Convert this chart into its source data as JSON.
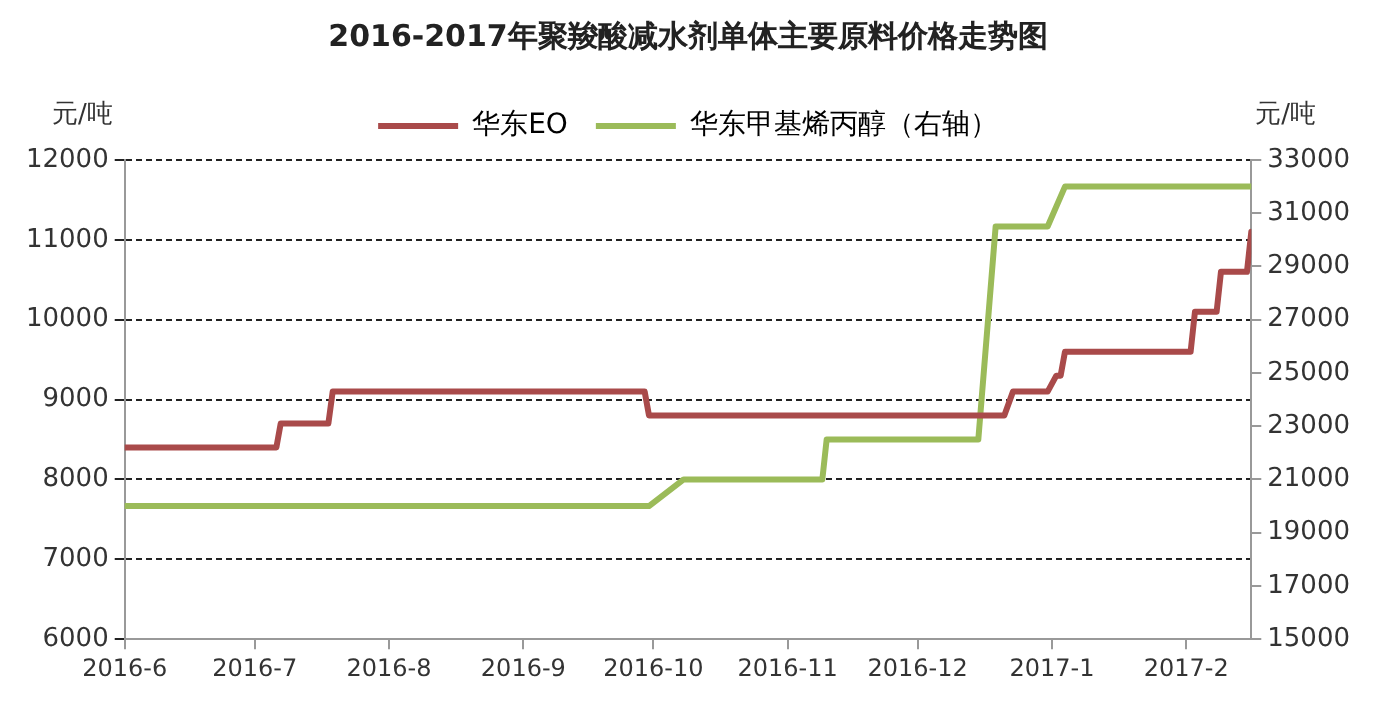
{
  "chart_data": {
    "type": "line",
    "title": "2016-2017年聚羧酸减水剂单体主要原料价格走势图",
    "ylabel": "元/吨",
    "y2label": "元/吨",
    "xlim": [
      "2016-06-01",
      "2017-02-16"
    ],
    "xticks": [
      {
        "value": "2016-06-01",
        "label": "2016-6"
      },
      {
        "value": "2016-07-01",
        "label": "2016-7"
      },
      {
        "value": "2016-08-01",
        "label": "2016-8"
      },
      {
        "value": "2016-09-01",
        "label": "2016-9"
      },
      {
        "value": "2016-10-01",
        "label": "2016-10"
      },
      {
        "value": "2016-11-01",
        "label": "2016-11"
      },
      {
        "value": "2016-12-01",
        "label": "2016-12"
      },
      {
        "value": "2017-01-01",
        "label": "2017-1"
      },
      {
        "value": "2017-02-01",
        "label": "2017-2"
      }
    ],
    "ylim": [
      6000,
      12000
    ],
    "yticks": [
      6000,
      7000,
      8000,
      9000,
      10000,
      11000,
      12000
    ],
    "y2lim": [
      15000,
      33000
    ],
    "y2ticks": [
      15000,
      17000,
      19000,
      21000,
      23000,
      25000,
      27000,
      29000,
      31000,
      33000
    ],
    "grid": "y",
    "legend": "top",
    "marker": "none",
    "line_style": "solid",
    "series": [
      {
        "name": "华东EO",
        "color": "#a94a4a",
        "x": [
          "2016-06-01",
          "2016-07-06",
          "2016-07-07",
          "2016-07-18",
          "2016-07-19",
          "2016-09-29",
          "2016-09-30",
          "2016-12-21",
          "2016-12-23",
          "2016-12-31",
          "2017-01-02",
          "2017-01-03",
          "2017-01-04",
          "2017-02-02",
          "2017-02-03",
          "2017-02-08",
          "2017-02-09",
          "2017-02-15",
          "2017-02-16"
        ],
        "values": [
          8400,
          8400,
          8700,
          8700,
          9100,
          9100,
          8800,
          8800,
          9100,
          9100,
          9300,
          9300,
          9600,
          9600,
          10100,
          10100,
          10600,
          10600,
          11100
        ]
      },
      {
        "name": "华东甲基烯丙醇（右轴）",
        "color": "#9bbb59",
        "axis": "y2",
        "x": [
          "2016-06-01",
          "2016-09-30",
          "2016-10-08",
          "2016-11-09",
          "2016-11-10",
          "2016-12-15",
          "2016-12-19",
          "2016-12-31",
          "2017-01-04",
          "2017-02-16"
        ],
        "values": [
          20000,
          20000,
          21000,
          21000,
          22500,
          22500,
          30500,
          30500,
          32000,
          32000
        ]
      }
    ]
  }
}
